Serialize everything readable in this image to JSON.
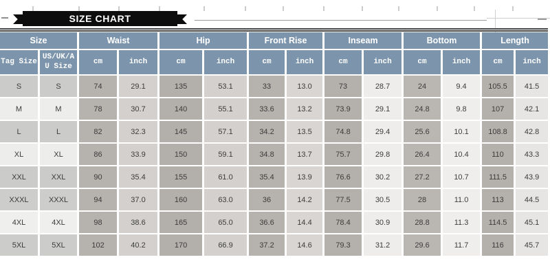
{
  "banner": {
    "title": "SIZE CHART"
  },
  "chart_data": {
    "type": "table",
    "title": "SIZE CHART",
    "column_groups": [
      {
        "label": "Size",
        "sub": [
          "Tag Size",
          "US/UK/AU Size"
        ]
      },
      {
        "label": "Waist",
        "sub": [
          "cm",
          "inch"
        ]
      },
      {
        "label": "Hip",
        "sub": [
          "cm",
          "inch"
        ]
      },
      {
        "label": "Front Rise",
        "sub": [
          "cm",
          "inch"
        ]
      },
      {
        "label": "Inseam",
        "sub": [
          "cm",
          "inch"
        ]
      },
      {
        "label": "Bottom",
        "sub": [
          "cm",
          "inch"
        ]
      },
      {
        "label": "Length",
        "sub": [
          "cm",
          "inch"
        ]
      }
    ],
    "rows": [
      [
        "S",
        "S",
        "74",
        "29.1",
        "135",
        "53.1",
        "33",
        "13.0",
        "73",
        "28.7",
        "24",
        "9.4",
        "105.5",
        "41.5"
      ],
      [
        "M",
        "M",
        "78",
        "30.7",
        "140",
        "55.1",
        "33.6",
        "13.2",
        "73.9",
        "29.1",
        "24.8",
        "9.8",
        "107",
        "42.1"
      ],
      [
        "L",
        "L",
        "82",
        "32.3",
        "145",
        "57.1",
        "34.2",
        "13.5",
        "74.8",
        "29.4",
        "25.6",
        "10.1",
        "108.8",
        "42.8"
      ],
      [
        "XL",
        "XL",
        "86",
        "33.9",
        "150",
        "59.1",
        "34.8",
        "13.7",
        "75.7",
        "29.8",
        "26.4",
        "10.4",
        "110",
        "43.3"
      ],
      [
        "XXL",
        "XXL",
        "90",
        "35.4",
        "155",
        "61.0",
        "35.4",
        "13.9",
        "76.6",
        "30.2",
        "27.2",
        "10.7",
        "111.5",
        "43.9"
      ],
      [
        "XXXL",
        "XXXL",
        "94",
        "37.0",
        "160",
        "63.0",
        "36",
        "14.2",
        "77.5",
        "30.5",
        "28",
        "11.0",
        "113",
        "44.5"
      ],
      [
        "4XL",
        "4XL",
        "98",
        "38.6",
        "165",
        "65.0",
        "36.6",
        "14.4",
        "78.4",
        "30.9",
        "28.8",
        "11.3",
        "114.5",
        "45.1"
      ],
      [
        "5XL",
        "5XL",
        "102",
        "40.2",
        "170",
        "66.9",
        "37.2",
        "14.6",
        "79.3",
        "31.2",
        "29.6",
        "11.7",
        "116",
        "45.7"
      ]
    ]
  },
  "colors": {
    "header_bg": "#7c95ac",
    "header_text": "#ffffff",
    "banner_bg": "#0d0d0d",
    "banner_text": "#ffffff",
    "cell_text": "#3c3c3c",
    "cm_bg": [
      "#b6b2ae",
      "#b3afab",
      "#b6b2ae",
      "#b4b0ac",
      "#bab6b2",
      "#b4b0ac"
    ],
    "inch_bg": [
      "#d3d0cd",
      "#d3d0cd",
      "#d8d5d2",
      "#eeedeb",
      "#efeeec",
      "#e7e5e3"
    ],
    "size_row_bg": [
      "#cbcbca",
      "#ededec",
      "#cbcbca",
      "#ededec",
      "#cbcbca",
      "#cdcdcc",
      "#efefee",
      "#cccccb"
    ]
  }
}
